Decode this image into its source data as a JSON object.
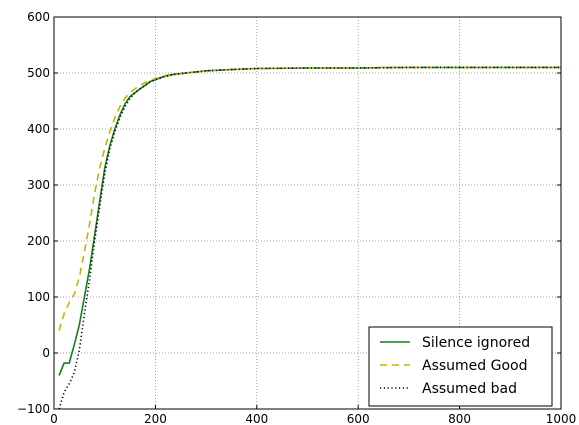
{
  "chart_data": {
    "type": "line",
    "xlim": [
      0,
      1000
    ],
    "ylim": [
      -100,
      600
    ],
    "xticks": [
      0,
      200,
      400,
      600,
      800,
      1000
    ],
    "yticks": [
      -100,
      0,
      100,
      200,
      300,
      400,
      500,
      600
    ],
    "grid": true,
    "legend_position": "lower-right",
    "series": [
      {
        "name": "Silence ignored",
        "color": "#1a7d1a",
        "style": "solid",
        "x": [
          10,
          20,
          30,
          40,
          50,
          60,
          70,
          80,
          90,
          100,
          110,
          120,
          130,
          140,
          150,
          160,
          170,
          180,
          190,
          200,
          220,
          240,
          260,
          280,
          300,
          350,
          400,
          500,
          600,
          700,
          800,
          900,
          1000
        ],
        "y": [
          -40,
          -18,
          -18,
          15,
          50,
          100,
          150,
          210,
          270,
          330,
          370,
          400,
          425,
          445,
          458,
          465,
          472,
          478,
          485,
          488,
          495,
          498,
          500,
          502,
          504,
          506,
          508,
          509,
          509,
          510,
          510,
          510,
          510
        ]
      },
      {
        "name": "Assumed Good",
        "color": "#c8b400",
        "style": "dashed",
        "x": [
          10,
          20,
          30,
          40,
          50,
          60,
          70,
          80,
          90,
          100,
          110,
          120,
          130,
          140,
          150,
          160,
          170,
          180,
          190,
          200,
          220,
          240,
          260,
          280,
          300,
          350,
          400,
          500,
          600,
          700,
          800,
          900,
          1000
        ],
        "y": [
          40,
          70,
          90,
          105,
          135,
          180,
          230,
          285,
          330,
          365,
          395,
          420,
          440,
          455,
          465,
          472,
          478,
          483,
          487,
          490,
          494,
          497,
          500,
          502,
          504,
          506,
          508,
          509,
          509,
          510,
          510,
          510,
          510
        ]
      },
      {
        "name": "Assumed bad",
        "color": "#000000",
        "style": "dotted",
        "x": [
          10,
          20,
          30,
          40,
          50,
          60,
          70,
          80,
          90,
          100,
          110,
          120,
          130,
          140,
          150,
          160,
          170,
          180,
          190,
          200,
          220,
          240,
          260,
          280,
          300,
          350,
          400,
          500,
          600,
          700,
          800,
          900,
          1000
        ],
        "y": [
          -100,
          -70,
          -55,
          -35,
          5,
          70,
          130,
          200,
          260,
          320,
          365,
          395,
          420,
          440,
          455,
          465,
          472,
          478,
          484,
          488,
          494,
          498,
          500,
          502,
          504,
          506,
          508,
          509,
          509,
          510,
          510,
          510,
          510
        ]
      }
    ]
  }
}
